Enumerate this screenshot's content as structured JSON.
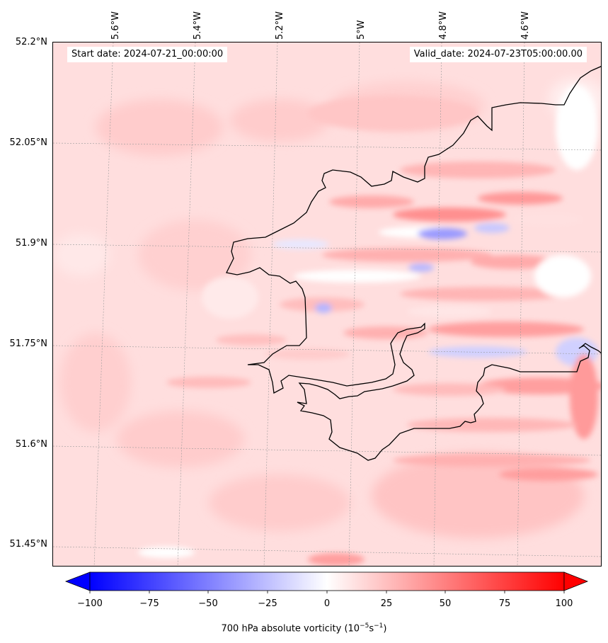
{
  "header": {
    "start_date": "Start date: 2024-07-21_00:00:00",
    "valid_date": "Valid_date: 2024-07-23T05:00:00.00"
  },
  "axes": {
    "lat_labels": [
      "52.2°N",
      "52.05°N",
      "51.9°N",
      "51.75°N",
      "51.6°N",
      "51.45°N"
    ],
    "lon_labels": [
      "5.6°W",
      "5.4°W",
      "5.2°W",
      "5°W",
      "4.8°W",
      "4.6°W"
    ]
  },
  "colorbar": {
    "ticks": [
      "−100",
      "−75",
      "−50",
      "−25",
      "0",
      "25",
      "50",
      "75",
      "100"
    ],
    "range": [
      -100,
      100
    ],
    "label": "700 hPa absolute vorticity (10",
    "label_exp1": "−5",
    "label_mid": "s",
    "label_exp2": "−1",
    "label_end": ")",
    "colors": {
      "min": "#0000ff",
      "mid": "#ffffff",
      "max": "#ff0000"
    }
  },
  "colors": {
    "background_field": "#ffd9d9",
    "coastline": "#000000",
    "gridline": "#999999"
  }
}
